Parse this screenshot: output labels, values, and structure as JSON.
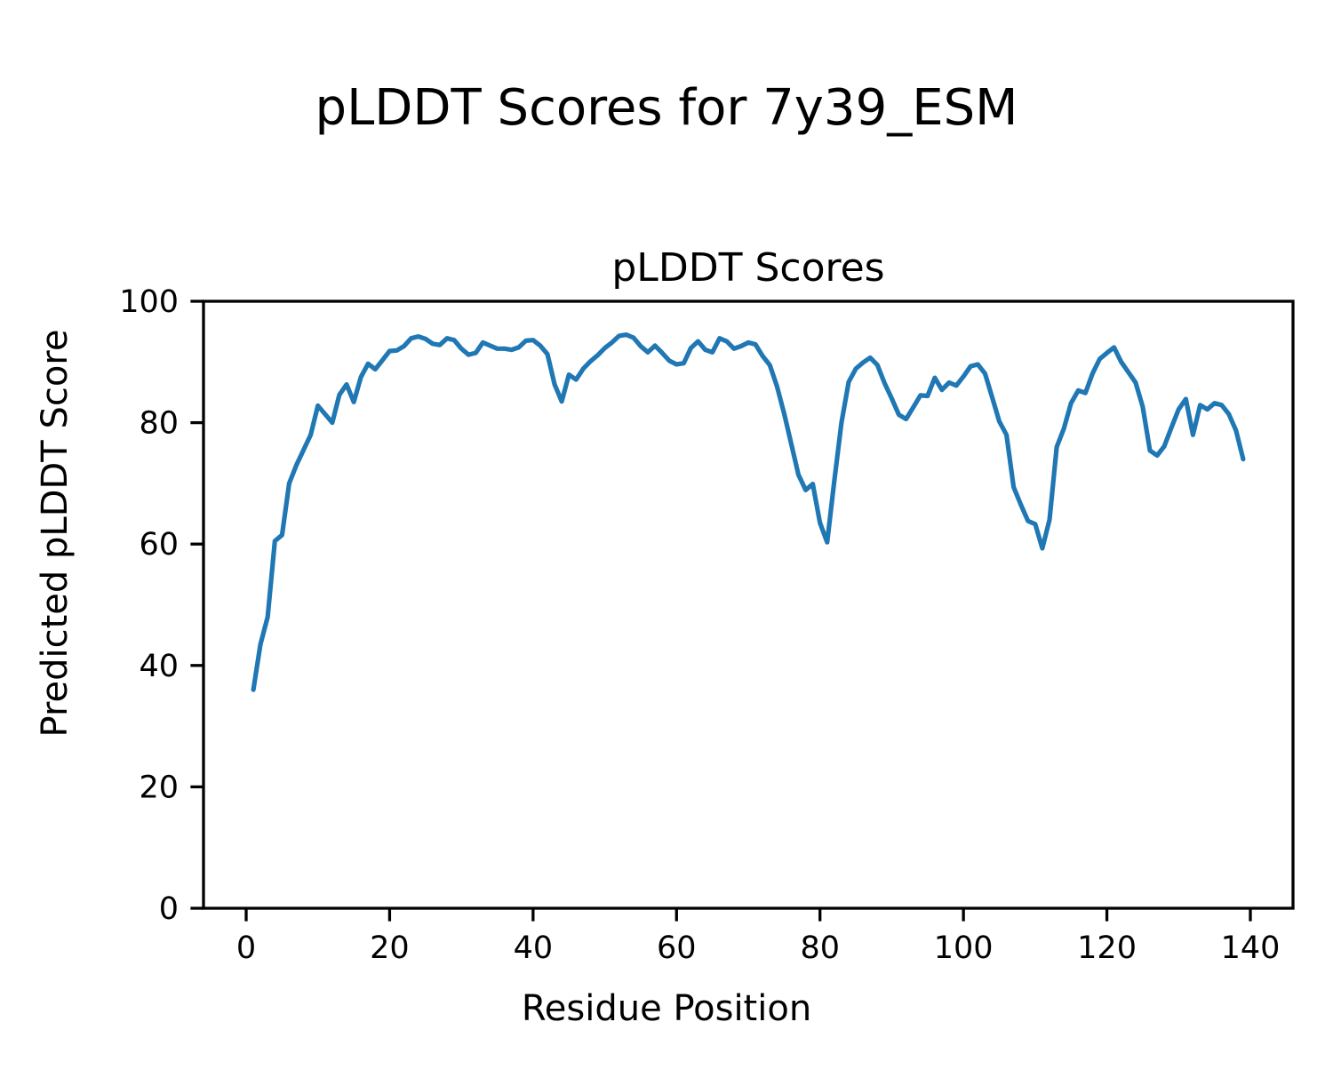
{
  "figure": {
    "title": "pLDDT Scores for 7y39_ESM"
  },
  "chart_data": {
    "type": "line",
    "title": "pLDDT Scores",
    "xlabel": "Residue Position",
    "ylabel": "Predicted pLDDT Score",
    "x_ticks": [
      0,
      20,
      40,
      60,
      80,
      100,
      120,
      140
    ],
    "y_ticks": [
      0,
      20,
      40,
      60,
      80,
      100
    ],
    "xlim": [
      -5.9,
      145.9
    ],
    "ylim": [
      0,
      100
    ],
    "grid": false,
    "legend": "none",
    "line_color": "#1f77b4",
    "series": [
      {
        "name": "pLDDT",
        "x_start": 1,
        "x_step": 1,
        "values": [
          36.0,
          43.5,
          48.0,
          60.5,
          61.5,
          70.0,
          73.0,
          75.5,
          78.0,
          82.8,
          81.4,
          80.0,
          84.6,
          86.3,
          83.4,
          87.5,
          89.7,
          88.8,
          90.3,
          91.8,
          91.9,
          92.6,
          93.9,
          94.2,
          93.8,
          93.0,
          92.8,
          93.9,
          93.6,
          92.2,
          91.2,
          91.5,
          93.2,
          92.7,
          92.2,
          92.2,
          92.0,
          92.4,
          93.5,
          93.6,
          92.7,
          91.3,
          86.3,
          83.5,
          87.9,
          87.1,
          88.9,
          90.1,
          91.1,
          92.3,
          93.2,
          94.3,
          94.5,
          94.0,
          92.6,
          91.6,
          92.7,
          91.5,
          90.2,
          89.6,
          89.8,
          92.3,
          93.4,
          92.0,
          91.6,
          93.9,
          93.4,
          92.2,
          92.6,
          93.2,
          92.9,
          91.0,
          89.5,
          86.0,
          81.5,
          76.5,
          71.4,
          68.9,
          69.9,
          63.5,
          60.3,
          70.5,
          80.0,
          86.7,
          88.9,
          89.9,
          90.7,
          89.5,
          86.5,
          84.0,
          81.3,
          80.6,
          82.5,
          84.5,
          84.4,
          87.4,
          85.4,
          86.6,
          86.1,
          87.6,
          89.3,
          89.6,
          88.1,
          84.2,
          80.2,
          78.0,
          69.4,
          66.5,
          63.8,
          63.3,
          59.3,
          64.0,
          76.0,
          79.0,
          83.2,
          85.3,
          84.9,
          88.1,
          90.5,
          91.5,
          92.4,
          90.0,
          88.3,
          86.6,
          82.6,
          75.4,
          74.6,
          76.1,
          79.2,
          82.2,
          83.9,
          78.0,
          82.9,
          82.2,
          83.2,
          82.9,
          81.4,
          78.7,
          74.0
        ]
      }
    ]
  }
}
